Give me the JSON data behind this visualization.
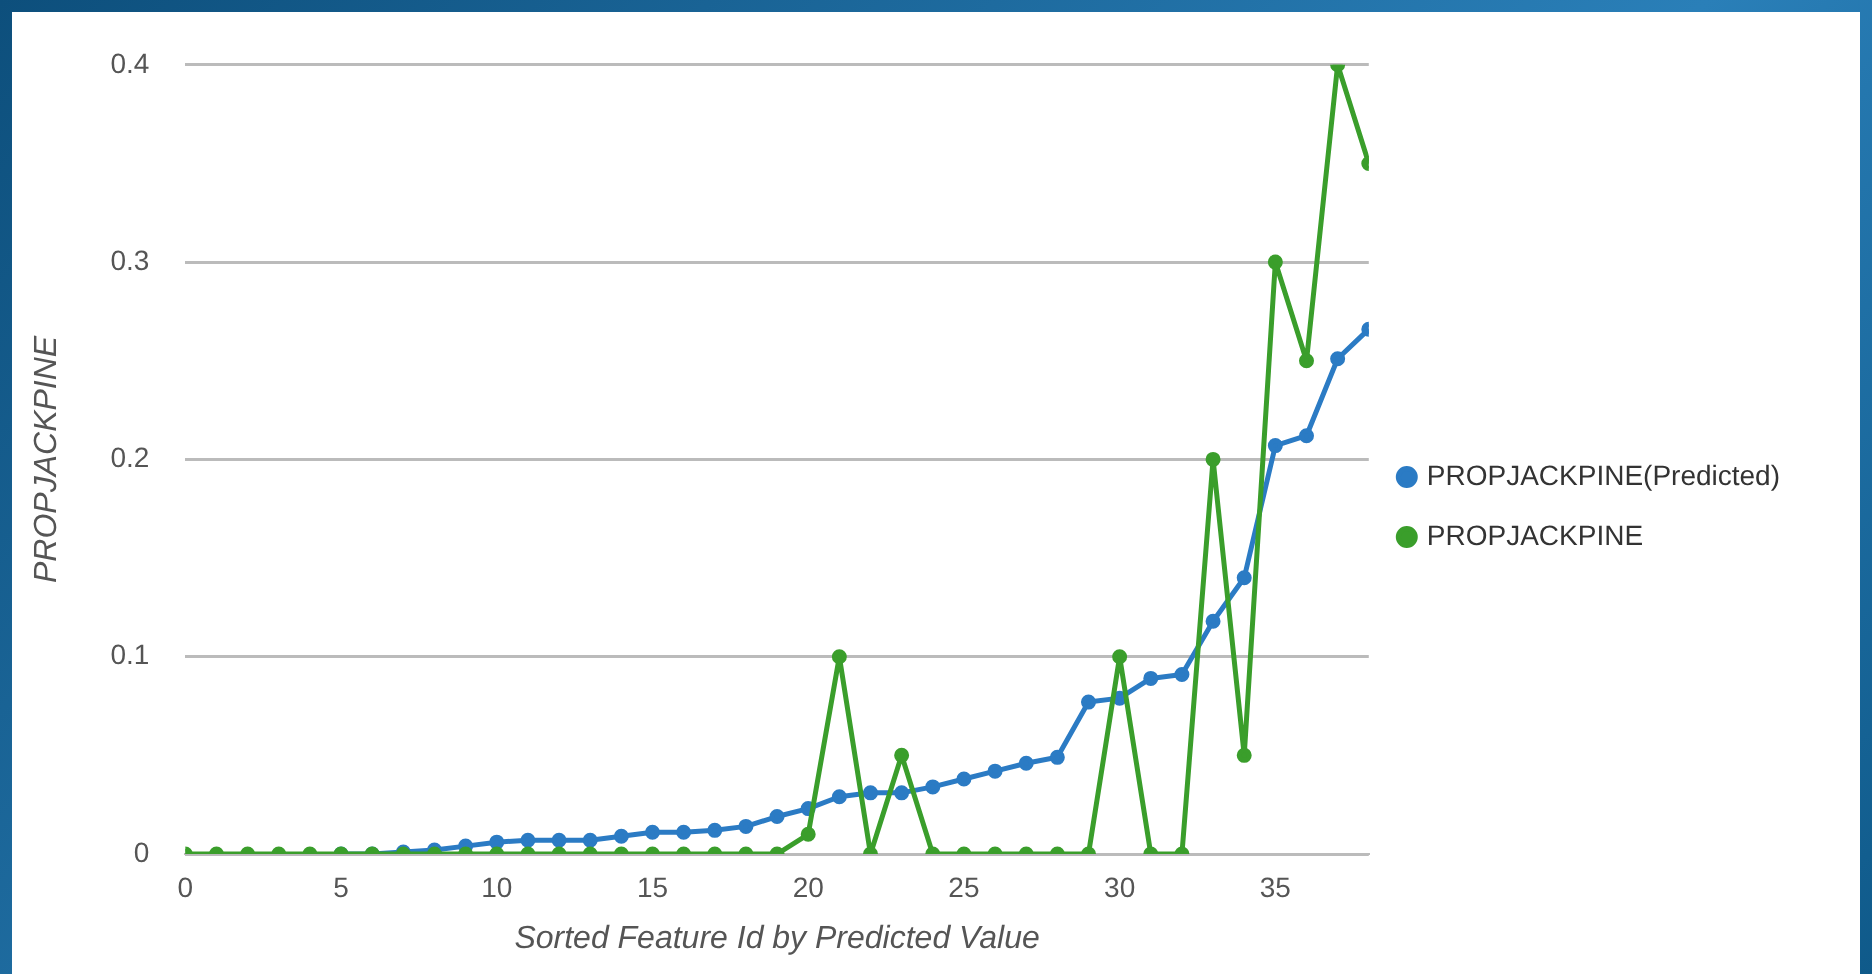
{
  "chart_data": {
    "type": "line",
    "xlabel": "Sorted Feature Id by Predicted Value",
    "ylabel": "PROPJACKPINE",
    "x": [
      0,
      1,
      2,
      3,
      4,
      5,
      6,
      7,
      8,
      9,
      10,
      11,
      12,
      13,
      14,
      15,
      16,
      17,
      18,
      19,
      20,
      21,
      22,
      23,
      24,
      25,
      26,
      27,
      28,
      29,
      30,
      31,
      32,
      33,
      34,
      35,
      36,
      37,
      38
    ],
    "xlim": [
      0,
      38
    ],
    "xticks": [
      0,
      5,
      10,
      15,
      20,
      25,
      30,
      35
    ],
    "ylim": [
      0,
      0.4
    ],
    "yticks": [
      0,
      0.1,
      0.2,
      0.3,
      0.4
    ],
    "grid": "y",
    "legend": "right",
    "marker": "circle",
    "line_style": "solid",
    "series": [
      {
        "name": "PROPJACKPINE(Predicted)",
        "color": "#2b7bc4",
        "values": [
          null,
          null,
          null,
          null,
          null,
          0,
          0,
          0.001,
          0.002,
          0.004,
          0.006,
          0.007,
          0.007,
          0.007,
          0.009,
          0.011,
          0.011,
          0.012,
          0.014,
          0.019,
          0.023,
          0.029,
          0.031,
          0.031,
          0.034,
          0.038,
          0.042,
          0.046,
          0.049,
          0.077,
          0.079,
          0.089,
          0.091,
          0.118,
          0.14,
          0.207,
          0.212,
          0.251,
          0.266
        ]
      },
      {
        "name": "PROPJACKPINE",
        "color": "#3a9e2b",
        "values": [
          0,
          0,
          0,
          0,
          0,
          0,
          0,
          0,
          0,
          0,
          0,
          0,
          0,
          0,
          0,
          0,
          0,
          0,
          0,
          0,
          0.01,
          0.1,
          0,
          0.05,
          0,
          0,
          0,
          0,
          0,
          0,
          0.1,
          0,
          0,
          0.2,
          0.05,
          0.3,
          0.25,
          0.4,
          0.35
        ]
      }
    ]
  }
}
